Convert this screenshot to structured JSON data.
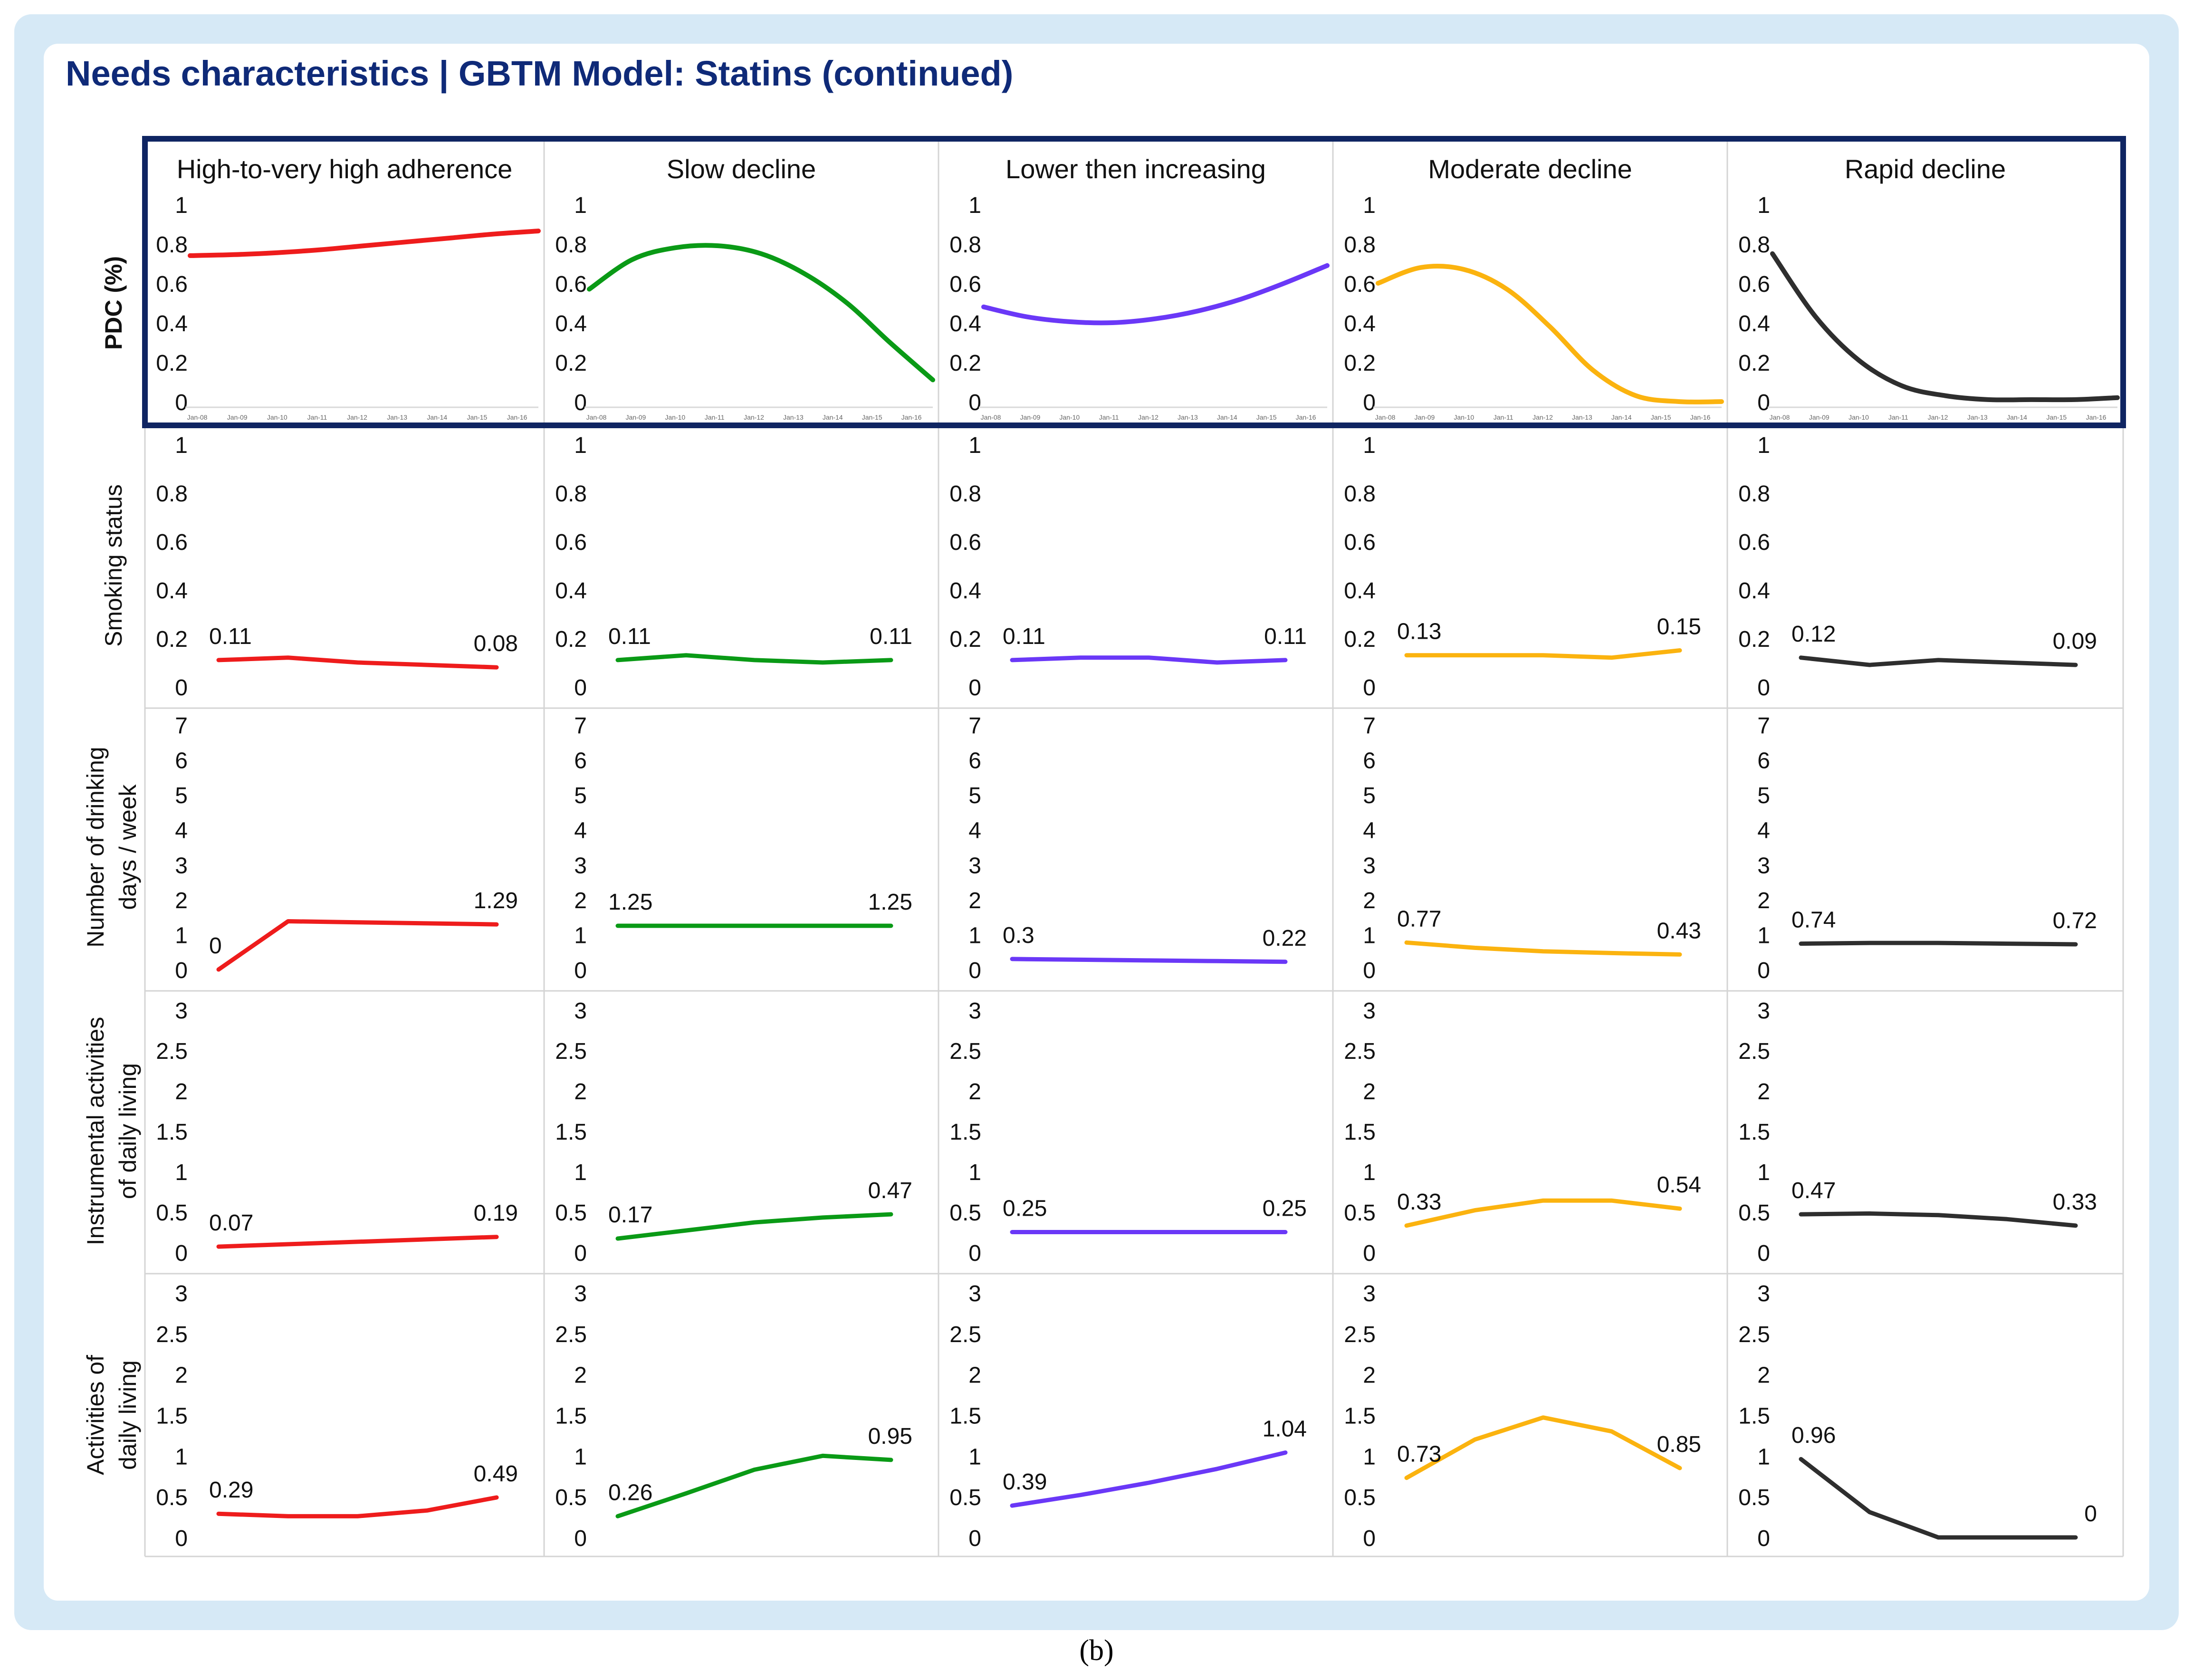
{
  "title": "Needs characteristics | GBTM Model: Statins (continued)",
  "caption": "(b)",
  "colors": {
    "series": [
      "#ee1c1c",
      "#0a9a16",
      "#6a38f7",
      "#fbb30f",
      "#2e2e2e"
    ],
    "title": "#0f2a78",
    "frame": "#0f2562",
    "outer_background": "#d6e9f6",
    "grid": "#d4d4d4"
  },
  "chart_data": {
    "type": "line",
    "columns": [
      "High-to-very high adherence",
      "Slow decline",
      "Lower then increasing",
      "Moderate decline",
      "Rapid decline"
    ],
    "x_tick_labels": [
      "Jan-08",
      "Jan-09",
      "Jan-10",
      "Jan-11",
      "Jan-12",
      "Jan-13",
      "Jan-14",
      "Jan-15",
      "Jan-16"
    ],
    "rows": [
      {
        "ylabel": "PDC (%)",
        "yticks": [
          "1",
          "0.8",
          "0.6",
          "0.4",
          "0.2",
          "0"
        ],
        "ylim": [
          0,
          1
        ],
        "series": [
          [
            0.74,
            0.745,
            0.755,
            0.77,
            0.79,
            0.81,
            0.83,
            0.85,
            0.865
          ],
          [
            0.57,
            0.72,
            0.78,
            0.79,
            0.75,
            0.65,
            0.5,
            0.3,
            0.11
          ],
          [
            0.48,
            0.43,
            0.405,
            0.4,
            0.42,
            0.46,
            0.52,
            0.6,
            0.69
          ],
          [
            0.6,
            0.68,
            0.67,
            0.57,
            0.38,
            0.16,
            0.03,
            0.0,
            0.0
          ],
          [
            0.75,
            0.43,
            0.21,
            0.08,
            0.03,
            0.01,
            0.01,
            0.01,
            0.02
          ]
        ],
        "labels": []
      },
      {
        "ylabel": "Smoking status",
        "yticks": [
          "1",
          "0.8",
          "0.6",
          "0.4",
          "0.2",
          "0"
        ],
        "ylim": [
          0,
          1
        ],
        "series": [
          [
            0.11,
            0.12,
            0.1,
            0.09,
            0.08
          ],
          [
            0.11,
            0.13,
            0.11,
            0.1,
            0.11
          ],
          [
            0.11,
            0.12,
            0.12,
            0.1,
            0.11
          ],
          [
            0.13,
            0.13,
            0.13,
            0.12,
            0.15
          ],
          [
            0.12,
            0.09,
            0.11,
            0.1,
            0.09
          ]
        ],
        "labels": [
          [
            "0.11",
            "0.08"
          ],
          [
            "0.11",
            "0.11"
          ],
          [
            "0.11",
            "0.11"
          ],
          [
            "0.13",
            "0.15"
          ],
          [
            "0.12",
            "0.09"
          ]
        ]
      },
      {
        "ylabel": "Number of drinking days / week",
        "yticks": [
          "7",
          "6",
          "5",
          "4",
          "3",
          "2",
          "1",
          "0"
        ],
        "ylim": [
          0,
          7
        ],
        "series": [
          [
            0,
            1.38,
            1.35,
            1.32,
            1.29
          ],
          [
            1.25,
            1.25,
            1.25,
            1.25,
            1.25
          ],
          [
            0.3,
            0.28,
            0.26,
            0.24,
            0.22
          ],
          [
            0.77,
            0.62,
            0.52,
            0.47,
            0.43
          ],
          [
            0.74,
            0.76,
            0.76,
            0.74,
            0.72
          ]
        ],
        "labels": [
          [
            "0",
            "1.29"
          ],
          [
            "1.25",
            "1.25"
          ],
          [
            "0.3",
            "0.22"
          ],
          [
            "0.77",
            "0.43"
          ],
          [
            "0.74",
            "0.72"
          ]
        ]
      },
      {
        "ylabel": "Instrumental activities of daily living",
        "yticks": [
          "3",
          "2.5",
          "2",
          "1.5",
          "1",
          "0.5",
          "0"
        ],
        "ylim": [
          0,
          3
        ],
        "series": [
          [
            0.07,
            0.1,
            0.13,
            0.16,
            0.19
          ],
          [
            0.17,
            0.27,
            0.37,
            0.43,
            0.47
          ],
          [
            0.25,
            0.25,
            0.25,
            0.25,
            0.25
          ],
          [
            0.33,
            0.52,
            0.64,
            0.64,
            0.54
          ],
          [
            0.47,
            0.48,
            0.46,
            0.41,
            0.33
          ]
        ],
        "labels": [
          [
            "0.07",
            "0.19"
          ],
          [
            "0.17",
            "0.47"
          ],
          [
            "0.25",
            "0.25"
          ],
          [
            "0.33",
            "0.54"
          ],
          [
            "0.47",
            "0.33"
          ]
        ]
      },
      {
        "ylabel": "Activities of daily living",
        "yticks": [
          "3",
          "2.5",
          "2",
          "1.5",
          "1",
          "0.5",
          "0"
        ],
        "ylim": [
          0,
          3
        ],
        "series": [
          [
            0.29,
            0.26,
            0.26,
            0.33,
            0.49
          ],
          [
            0.26,
            0.54,
            0.83,
            1.0,
            0.95
          ],
          [
            0.39,
            0.52,
            0.67,
            0.84,
            1.04
          ],
          [
            0.73,
            1.2,
            1.47,
            1.3,
            0.85
          ],
          [
            0.96,
            0.31,
            0.0,
            0.0,
            0.0
          ]
        ],
        "labels": [
          [
            "0.29",
            "0.49"
          ],
          [
            "0.26",
            "0.95"
          ],
          [
            "0.39",
            "1.04"
          ],
          [
            "0.73",
            "0.85"
          ],
          [
            "0.96",
            "0"
          ]
        ]
      }
    ]
  }
}
